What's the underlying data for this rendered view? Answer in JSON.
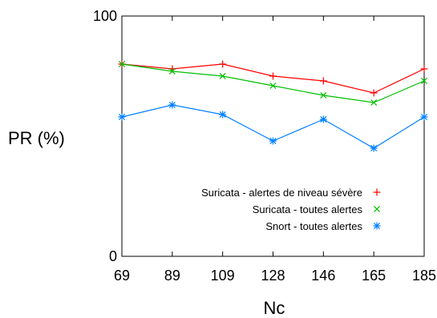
{
  "chart_data": {
    "type": "line",
    "title": "",
    "xlabel": "Nc",
    "ylabel": "PR (%)",
    "categories": [
      "69",
      "89",
      "109",
      "128",
      "146",
      "165",
      "185"
    ],
    "ylim": [
      0,
      100
    ],
    "yticks": [
      "0",
      "100"
    ],
    "grid": false,
    "legend_position": "bottom-right",
    "series": [
      {
        "name": "Suricata - alertes de niveau sévère",
        "color": "#ff0000",
        "marker": "+",
        "values": [
          80,
          78,
          80,
          75,
          73,
          68,
          78
        ]
      },
      {
        "name": "Suricata - toutes alertes",
        "color": "#00c000",
        "marker": "x",
        "values": [
          80,
          77,
          75,
          71,
          67,
          64,
          73
        ]
      },
      {
        "name": "Snort - toutes alertes",
        "color": "#0080ff",
        "marker": "*",
        "values": [
          58,
          63,
          59,
          48,
          57,
          45,
          58
        ]
      }
    ]
  }
}
